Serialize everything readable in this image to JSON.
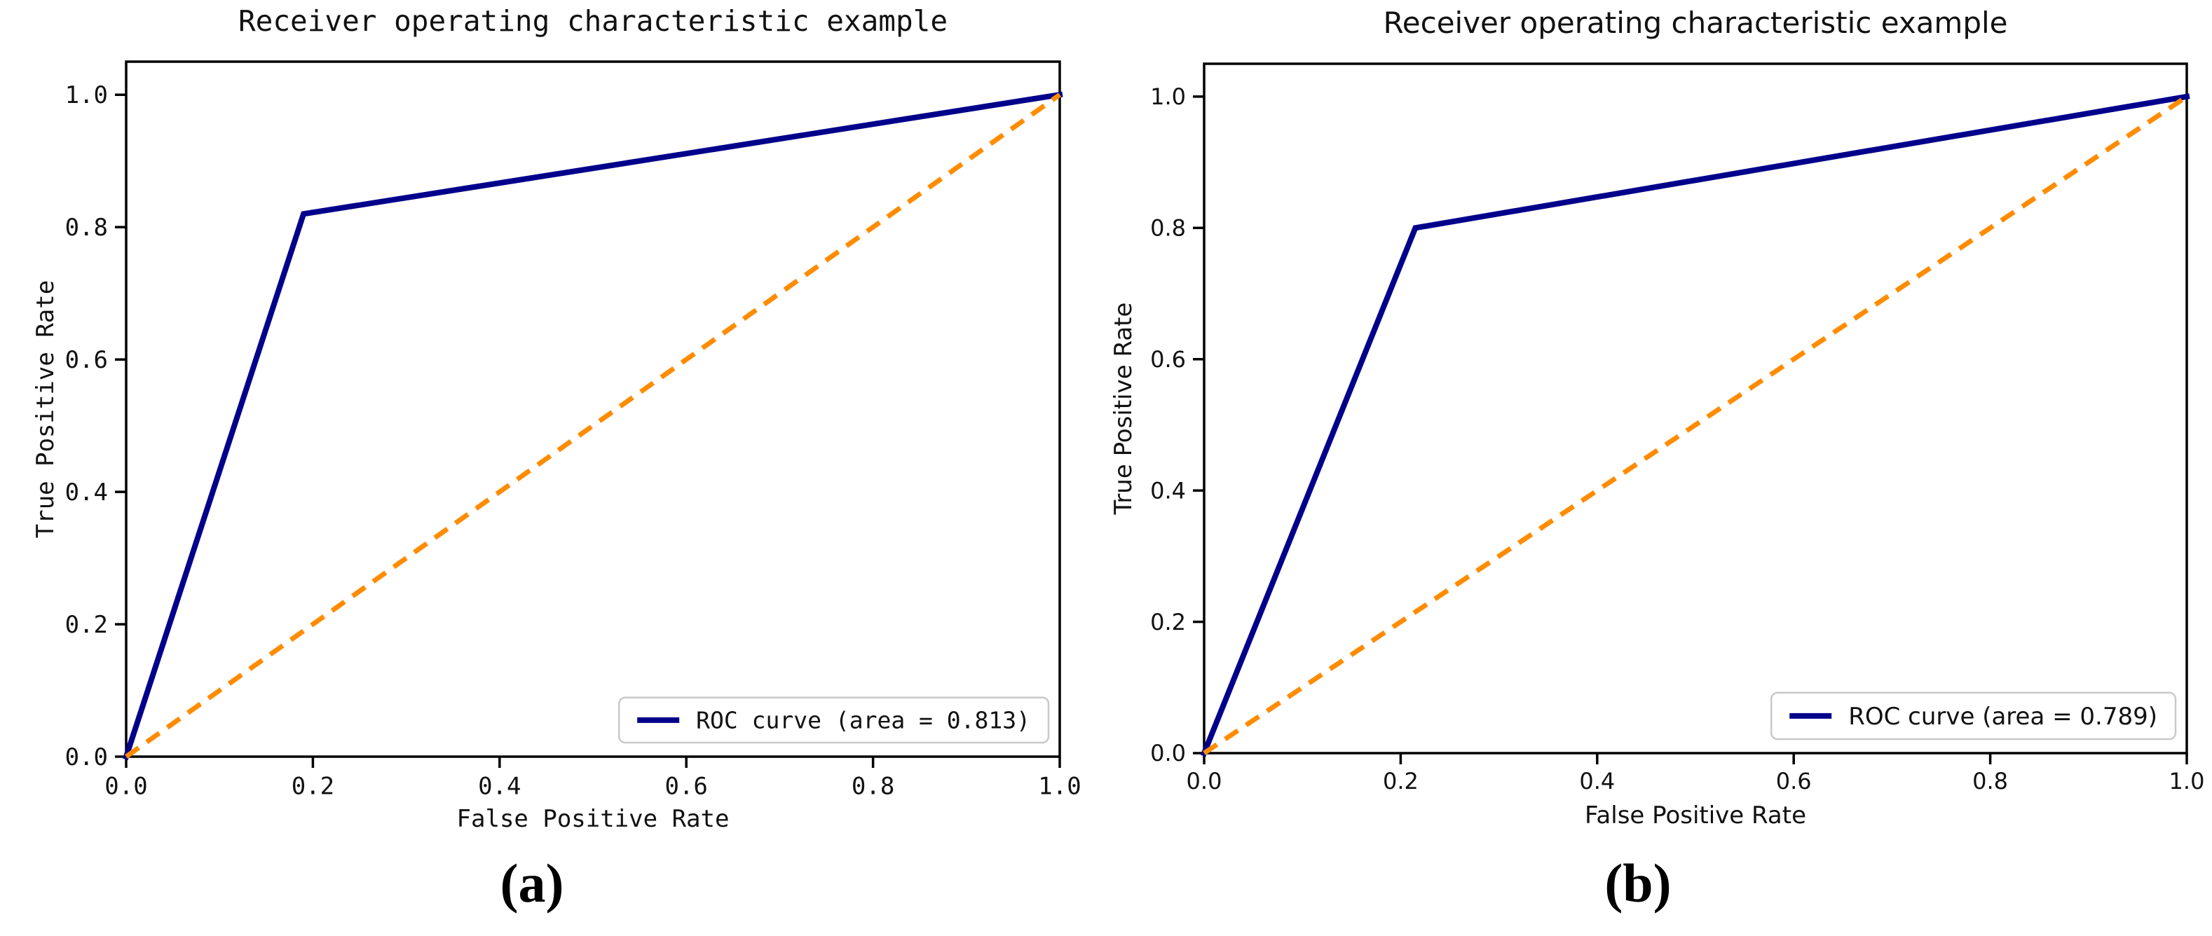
{
  "page": {
    "background": "#ffffff"
  },
  "chart_data": [
    {
      "type": "line",
      "panel": "a",
      "title": "Receiver operating characteristic example",
      "xlabel": "False Positive Rate",
      "ylabel": "True Positive Rate",
      "xlim": [
        0.0,
        1.0
      ],
      "ylim": [
        0.0,
        1.05
      ],
      "xticks": [
        0.0,
        0.2,
        0.4,
        0.6,
        0.8,
        1.0
      ],
      "yticks": [
        0.0,
        0.2,
        0.4,
        0.6,
        0.8,
        1.0
      ],
      "xtick_labels": [
        "0.0",
        "0.2",
        "0.4",
        "0.6",
        "0.8",
        "1.0"
      ],
      "ytick_labels": [
        "0.0",
        "0.2",
        "0.4",
        "0.6",
        "0.8",
        "1.0"
      ],
      "grid": false,
      "legend": {
        "label": "ROC curve (area = 0.813)",
        "position": "lower right"
      },
      "caption": "(a)",
      "auc": 0.813,
      "series": [
        {
          "name": "roc-curve",
          "color": "#00008B",
          "line_style": "solid",
          "line_width": 8,
          "points": [
            [
              0.0,
              0.0
            ],
            [
              0.19,
              0.82
            ],
            [
              1.0,
              1.0
            ]
          ]
        },
        {
          "name": "chance-diagonal",
          "color": "#FF8C00",
          "line_style": "dashed",
          "line_width": 7,
          "points": [
            [
              0.0,
              0.0
            ],
            [
              1.0,
              1.0
            ]
          ]
        }
      ]
    },
    {
      "type": "line",
      "panel": "b",
      "title": "Receiver operating characteristic example",
      "xlabel": "False Positive Rate",
      "ylabel": "True Positive Rate",
      "xlim": [
        0.0,
        1.0
      ],
      "ylim": [
        0.0,
        1.05
      ],
      "xticks": [
        0.0,
        0.2,
        0.4,
        0.6,
        0.8,
        1.0
      ],
      "yticks": [
        0.0,
        0.2,
        0.4,
        0.6,
        0.8,
        1.0
      ],
      "xtick_labels": [
        "0.0",
        "0.2",
        "0.4",
        "0.6",
        "0.8",
        "1.0"
      ],
      "ytick_labels": [
        "0.0",
        "0.2",
        "0.4",
        "0.6",
        "0.8",
        "1.0"
      ],
      "grid": false,
      "legend": {
        "label": "ROC curve (area = 0.789)",
        "position": "lower right"
      },
      "caption": "(b)",
      "auc": 0.789,
      "series": [
        {
          "name": "roc-curve",
          "color": "#00008B",
          "line_style": "solid",
          "line_width": 8,
          "points": [
            [
              0.0,
              0.0
            ],
            [
              0.215,
              0.8
            ],
            [
              1.0,
              1.0
            ]
          ]
        },
        {
          "name": "chance-diagonal",
          "color": "#FF8C00",
          "line_style": "dashed",
          "line_width": 7,
          "points": [
            [
              0.0,
              0.0
            ],
            [
              1.0,
              1.0
            ]
          ]
        }
      ]
    }
  ]
}
